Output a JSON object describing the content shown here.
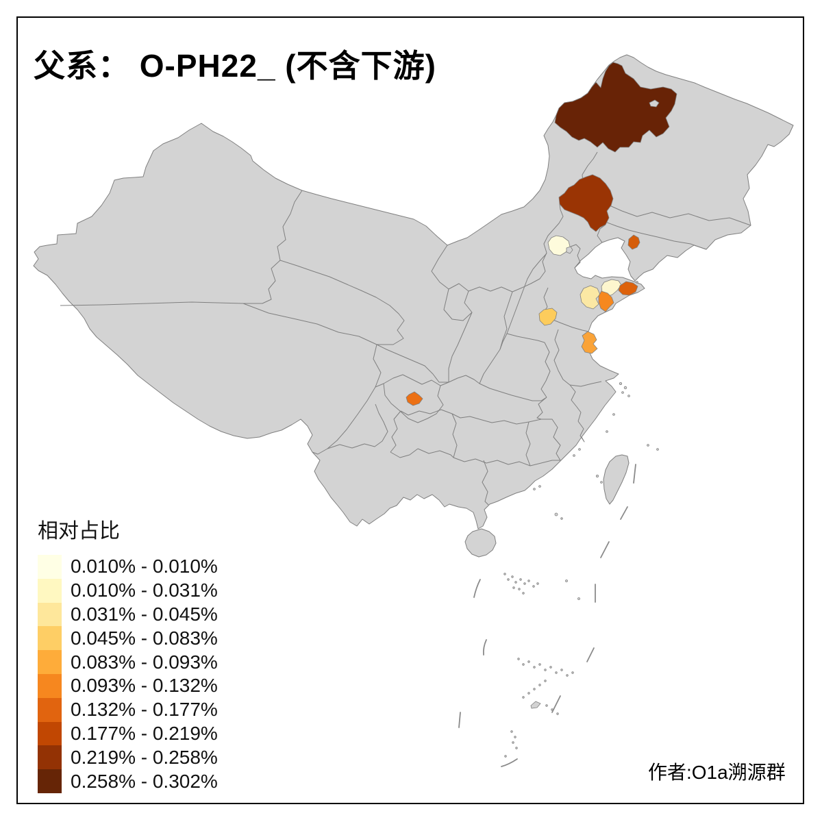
{
  "title": "父系： O-PH22_ (不含下游)",
  "author": "作者:O1a溯源群",
  "legend": {
    "title": "相对占比",
    "items": [
      {
        "label": "0.010% - 0.010%",
        "color": "#FFFFE5"
      },
      {
        "label": "0.010% - 0.031%",
        "color": "#FFF8C1"
      },
      {
        "label": "0.031% - 0.045%",
        "color": "#FEE79B"
      },
      {
        "label": "0.045% - 0.083%",
        "color": "#FECE65"
      },
      {
        "label": "0.083% - 0.093%",
        "color": "#FEAC3A"
      },
      {
        "label": "0.093% - 0.132%",
        "color": "#F6871F"
      },
      {
        "label": "0.132% - 0.177%",
        "color": "#E1640F"
      },
      {
        "label": "0.177% - 0.219%",
        "color": "#C14702"
      },
      {
        "label": "0.219% - 0.258%",
        "color": "#933204"
      },
      {
        "label": "0.258% - 0.302%",
        "color": "#662506"
      }
    ]
  },
  "map": {
    "land_fill": "#d3d3d3",
    "border_color": "#7f7f7f",
    "background": "#ffffff",
    "frame_color": "#000000",
    "regions": [
      {
        "id": "r-far-northeast-large",
        "map_position": "far north, NE Inner Mongolia area",
        "value_range": "0.258% - 0.302%",
        "color": "#682306"
      },
      {
        "id": "r-northeast-mid",
        "map_position": "SE Inner Mongolia area",
        "value_range": "0.219% - 0.258%",
        "color": "#9A3404"
      },
      {
        "id": "r-beijing-area",
        "map_position": "Beijing area",
        "value_range": "0.010% - 0.010%",
        "color": "#FEFBDC"
      },
      {
        "id": "r-liaoning-coast-small",
        "map_position": "small coastal area, Liaoning",
        "value_range": "0.132% - 0.177%",
        "color": "#D55D0A"
      },
      {
        "id": "r-shandong-cream",
        "map_position": "north Shandong peninsula",
        "value_range": "0.010% - 0.031%",
        "color": "#FDF6CE"
      },
      {
        "id": "r-shandong-pale",
        "map_position": "central Shandong",
        "value_range": "0.031% - 0.045%",
        "color": "#FBE8A4"
      },
      {
        "id": "r-shandong-orange",
        "map_position": "south Shandong coast (Qingdao area)",
        "value_range": "0.093% - 0.132%",
        "color": "#F6881F"
      },
      {
        "id": "r-shandong-tip",
        "map_position": "east tip of Shandong peninsula",
        "value_range": "0.132% - 0.177%",
        "color": "#DD620C"
      },
      {
        "id": "r-south-shandong",
        "map_position": "SW Shandong border area",
        "value_range": "0.045% - 0.083%",
        "color": "#FDCC5C"
      },
      {
        "id": "r-jiangsu",
        "map_position": "central Jiangsu",
        "value_range": "0.083% - 0.093%",
        "color": "#FAA338"
      },
      {
        "id": "r-chongqing-small",
        "map_position": "small area near Chongqing/Sichuan",
        "value_range": "0.093% - 0.132%",
        "color": "#EC7014"
      }
    ]
  },
  "chart_data": {
    "type": "heatmap",
    "subtype": "choropleth-map-of-china",
    "title": "父系： O-PH22_ (不含下游)",
    "legend_title": "相对占比",
    "legend_position": "bottom-left",
    "classes": [
      "0.010% - 0.010%",
      "0.010% - 0.031%",
      "0.031% - 0.045%",
      "0.045% - 0.083%",
      "0.083% - 0.093%",
      "0.093% - 0.132%",
      "0.132% - 0.177%",
      "0.177% - 0.219%",
      "0.219% - 0.258%",
      "0.258% - 0.302%"
    ],
    "palette": [
      "#FFFFE5",
      "#FFF8C1",
      "#FEE79B",
      "#FECE65",
      "#FEAC3A",
      "#F6871F",
      "#E1640F",
      "#C14702",
      "#933204",
      "#662506"
    ],
    "shaded_region_count": 11,
    "annotations": [
      "作者:O1a溯源群"
    ]
  }
}
